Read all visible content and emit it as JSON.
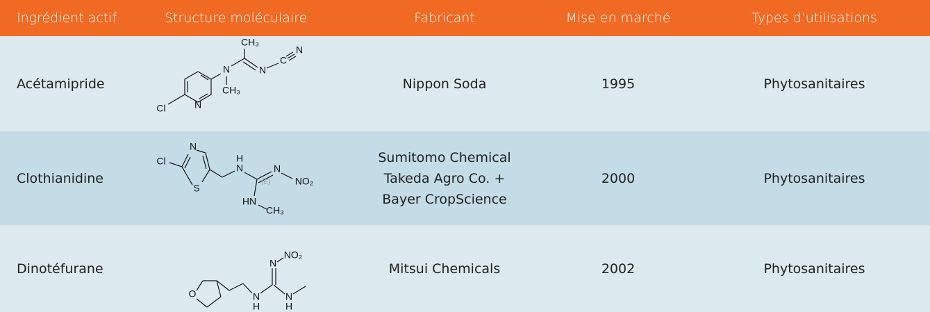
{
  "header": [
    "Ingrédient actif",
    "Structure moléculaire",
    "Fabricant",
    "Mise en marché",
    "Types d’utilisations"
  ],
  "rows": [
    {
      "ingredient": "Acétamipride",
      "structure": [
        "Cl",
        "N",
        "N",
        "CH₃",
        "CH₃",
        "N",
        "C",
        "N"
      ],
      "fabricant": [
        "Nippon Soda"
      ],
      "year": 1995,
      "usage": "Phytosanitaires"
    },
    {
      "ingredient": "Clothianidine",
      "structure": [
        "Cl",
        "N",
        "S",
        "H",
        "N",
        "N",
        "NO₂",
        "(E)",
        "HN",
        "CH₃"
      ],
      "fabricant": [
        "Sumitomo Chemical",
        "Takeda Agro Co. +",
        "Bayer CropScience"
      ],
      "year": 2000,
      "usage": "Phytosanitaires"
    },
    {
      "ingredient": "Dinotéfurane",
      "structure": [
        "O",
        "N",
        "H",
        "N",
        "NO₂",
        "N",
        "H"
      ],
      "fabricant": [
        "Mitsui Chemicals"
      ],
      "year": 2002,
      "usage": "Phytosanitaires"
    }
  ]
}
